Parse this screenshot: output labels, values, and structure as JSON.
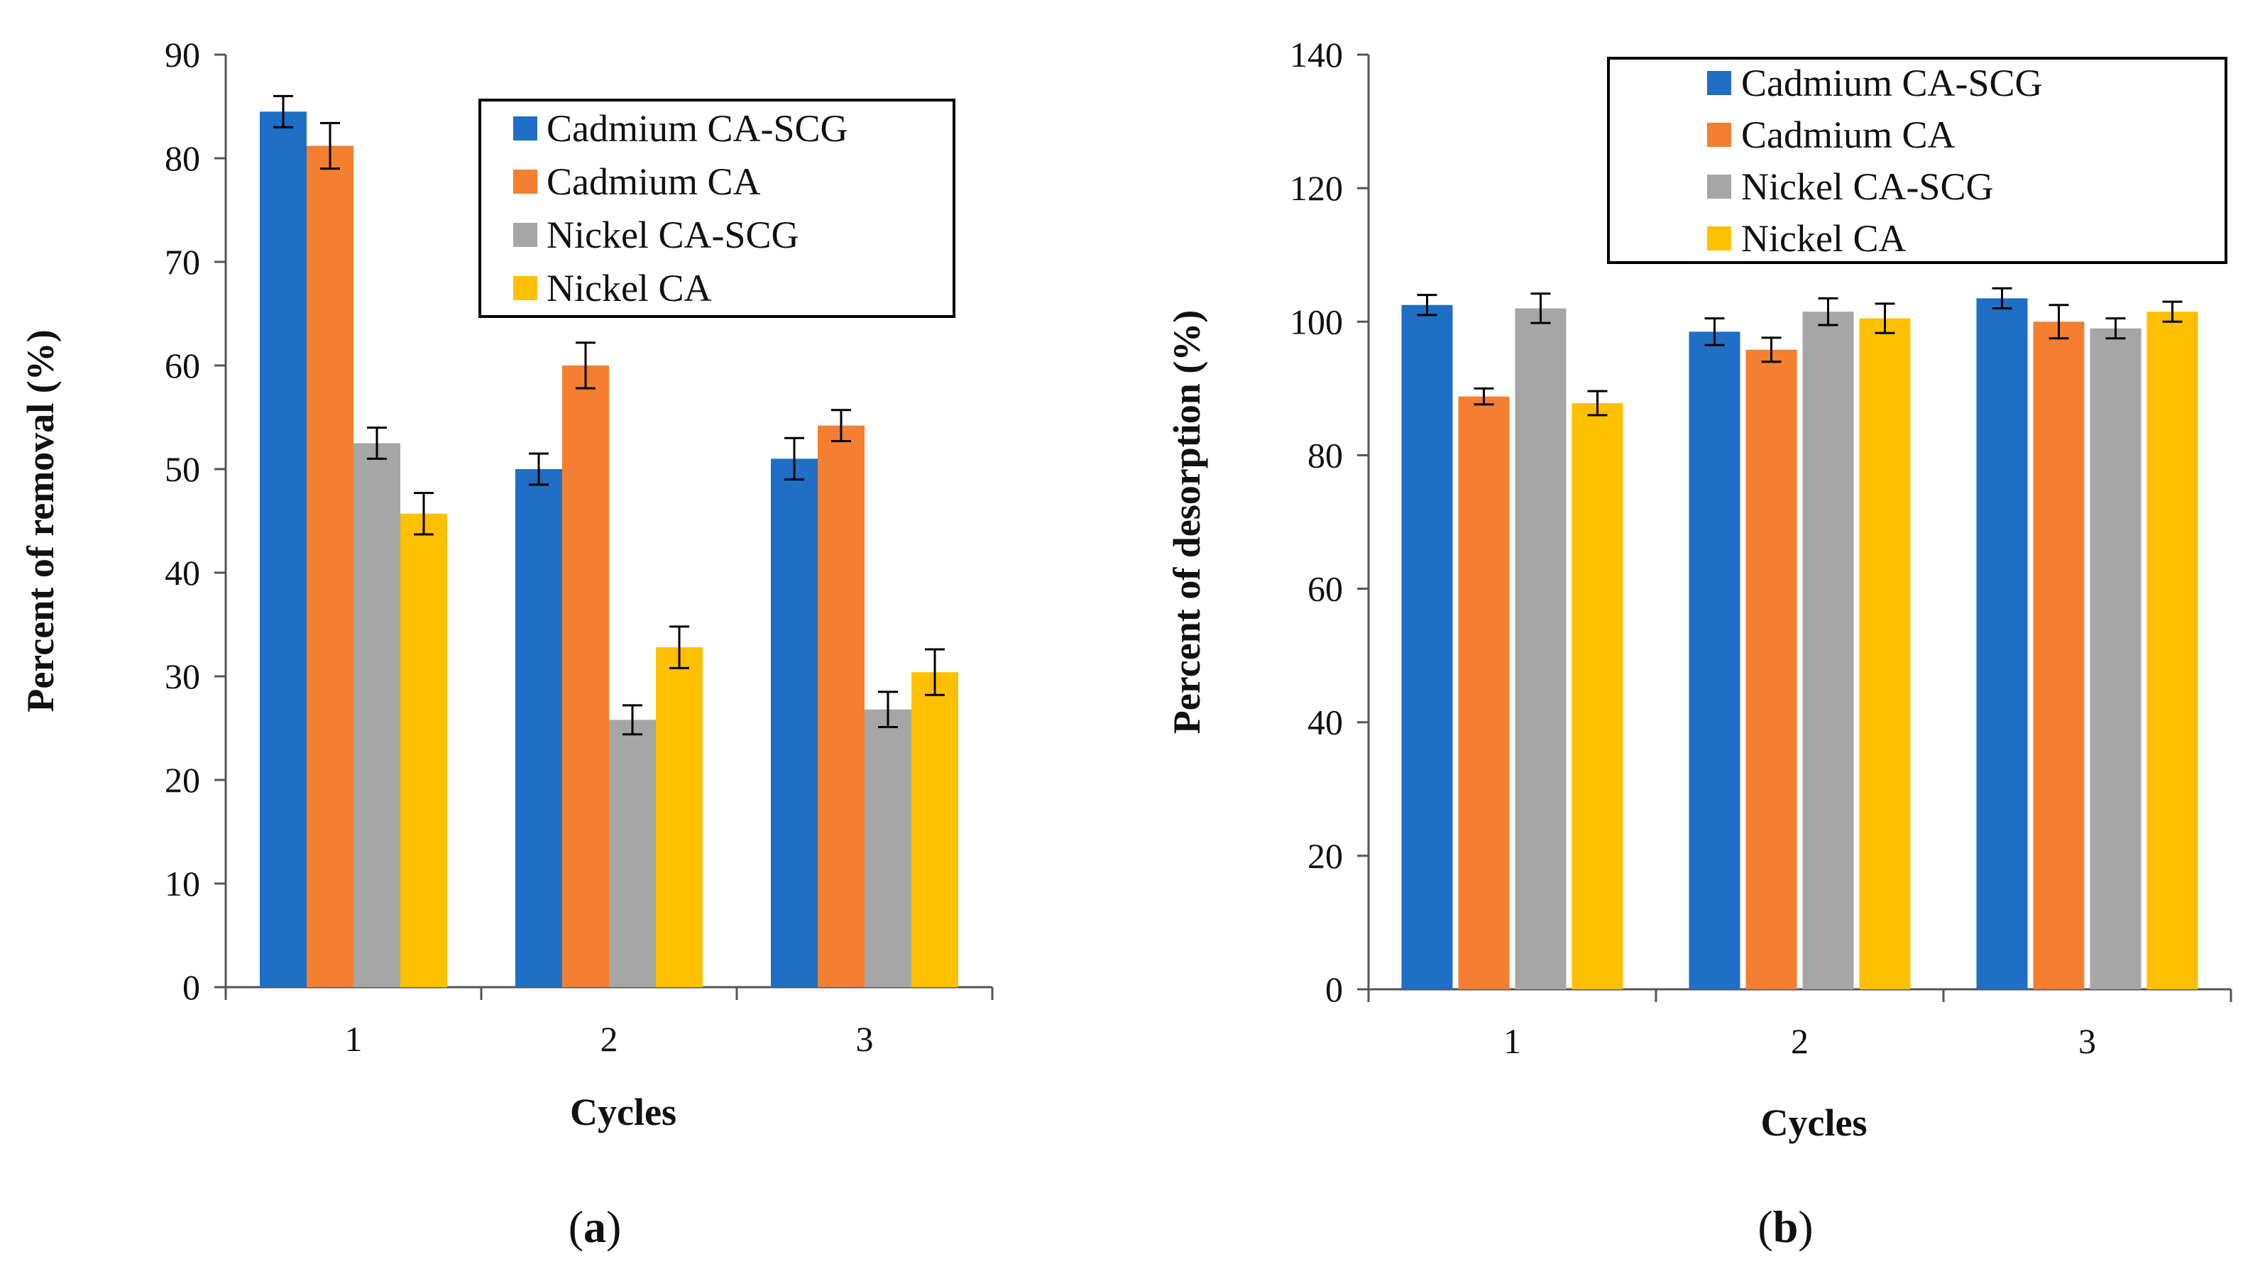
{
  "chart_data": [
    {
      "type": "bar",
      "panel_label": "a",
      "categories": [
        "1",
        "2",
        "3"
      ],
      "xlabel": "Cycles",
      "ylabel": "Percent  of  removal   (%)",
      "ylim": [
        0,
        90
      ],
      "yticks": [
        0,
        10,
        20,
        30,
        40,
        50,
        60,
        70,
        80,
        90
      ],
      "legend_position": "top-right",
      "series": [
        {
          "name": "Cadmium CA-SCG",
          "color": "#1f6fc6",
          "values": [
            84.5,
            50.0,
            51.0
          ],
          "errors": [
            1.5,
            1.5,
            2.0
          ]
        },
        {
          "name": "Cadmium CA",
          "color": "#f47f30",
          "values": [
            81.2,
            60.0,
            54.2
          ],
          "errors": [
            2.2,
            2.2,
            1.5
          ]
        },
        {
          "name": "Nickel  CA-SCG",
          "color": "#a6a6a6",
          "values": [
            52.5,
            25.8,
            26.8
          ],
          "errors": [
            1.5,
            1.4,
            1.7
          ]
        },
        {
          "name": "Nickel CA",
          "color": "#ffc000",
          "values": [
            45.7,
            32.8,
            30.4
          ],
          "errors": [
            2.0,
            2.0,
            2.2
          ]
        }
      ]
    },
    {
      "type": "bar",
      "panel_label": "b",
      "categories": [
        "1",
        "2",
        "3"
      ],
      "xlabel": "Cycles",
      "ylabel": "Percent  of  desorption   (%)",
      "ylim": [
        0,
        140
      ],
      "yticks": [
        0,
        20,
        40,
        60,
        80,
        100,
        120,
        140
      ],
      "legend_position": "top-right",
      "series": [
        {
          "name": "Cadmium CA-SCG",
          "color": "#1f6fc6",
          "values": [
            102.5,
            98.5,
            103.5
          ],
          "errors": [
            1.5,
            2.0,
            1.5
          ]
        },
        {
          "name": "Cadmium CA",
          "color": "#f47f30",
          "values": [
            88.8,
            95.8,
            100.0
          ],
          "errors": [
            1.2,
            1.8,
            2.5
          ]
        },
        {
          "name": "Nickel  CA-SCG",
          "color": "#a6a6a6",
          "values": [
            102.0,
            101.5,
            99.0
          ],
          "errors": [
            2.2,
            2.0,
            1.5
          ]
        },
        {
          "name": "Nickel  CA",
          "color": "#ffc000",
          "values": [
            87.8,
            100.5,
            101.5
          ],
          "errors": [
            1.8,
            2.2,
            1.5
          ]
        }
      ]
    }
  ]
}
